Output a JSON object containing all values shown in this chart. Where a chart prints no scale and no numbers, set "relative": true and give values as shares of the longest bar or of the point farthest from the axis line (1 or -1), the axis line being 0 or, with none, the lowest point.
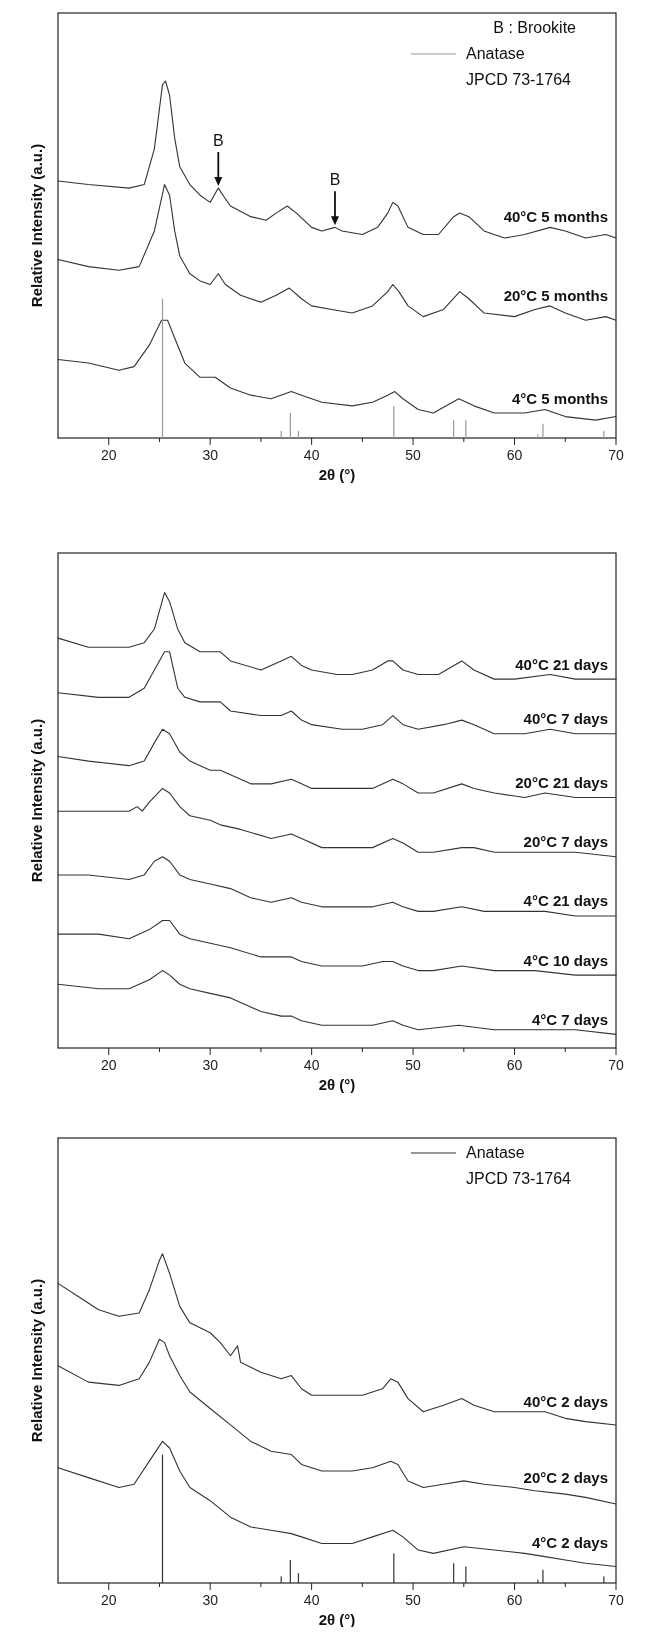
{
  "chart_data": [
    {
      "type": "line",
      "relative": true,
      "xlabel": "2θ (°)",
      "ylabel": "Relative Intensity (a.u.)",
      "xlim": [
        15,
        70
      ],
      "xticks": [
        20,
        {
          "value": 25,
          "label": null
        },
        30,
        {
          "value": 35,
          "label": null
        },
        40,
        {
          "value": 45,
          "label": null
        },
        50,
        {
          "value": 55,
          "label": null
        },
        60,
        {
          "value": 65,
          "label": null
        },
        70
      ],
      "legend": "top right",
      "annotations": [
        "B : Brookite",
        {
          "text": "B",
          "x": 30.8,
          "y": 0.7
        },
        {
          "text": "B",
          "x": 42.3,
          "y": 0.59
        }
      ],
      "series": [
        {
          "name": "40°C 5 months",
          "color": "#333333",
          "x": [
            15,
            18,
            22,
            23.5,
            24.5,
            25.3,
            25.6,
            26,
            26.5,
            27,
            28,
            29,
            30,
            30.8,
            31.5,
            32,
            34,
            35.5,
            36.5,
            37.6,
            38.5,
            40,
            41,
            42.3,
            43,
            45,
            46.5,
            47.5,
            48,
            48.5,
            49.5,
            51,
            52.5,
            54,
            54.6,
            55.5,
            57,
            59,
            61,
            63.5,
            65,
            67,
            69,
            70
          ],
          "values": [
            0.72,
            0.71,
            0.7,
            0.71,
            0.81,
            0.99,
            1.0,
            0.96,
            0.84,
            0.76,
            0.71,
            0.68,
            0.66,
            0.7,
            0.67,
            0.65,
            0.62,
            0.61,
            0.63,
            0.65,
            0.63,
            0.59,
            0.58,
            0.59,
            0.58,
            0.57,
            0.59,
            0.63,
            0.66,
            0.65,
            0.59,
            0.57,
            0.57,
            0.62,
            0.63,
            0.62,
            0.58,
            0.56,
            0.57,
            0.59,
            0.58,
            0.56,
            0.57,
            0.56
          ]
        },
        {
          "name": "20°C 5 months",
          "color": "#333333",
          "x": [
            15,
            18,
            21,
            23,
            24.5,
            25.5,
            26,
            26.5,
            27,
            28,
            29,
            30,
            30.8,
            31.5,
            33,
            35,
            36.5,
            37.8,
            39,
            40,
            42,
            44,
            46,
            47.5,
            48,
            48.6,
            49.5,
            51,
            53,
            54.6,
            55.5,
            57,
            60,
            62,
            63.5,
            65,
            67,
            69,
            70
          ],
          "values": [
            0.5,
            0.48,
            0.47,
            0.48,
            0.58,
            0.71,
            0.68,
            0.58,
            0.51,
            0.46,
            0.44,
            0.43,
            0.46,
            0.43,
            0.4,
            0.38,
            0.4,
            0.42,
            0.39,
            0.37,
            0.36,
            0.35,
            0.37,
            0.41,
            0.43,
            0.41,
            0.37,
            0.34,
            0.36,
            0.41,
            0.39,
            0.35,
            0.34,
            0.36,
            0.37,
            0.35,
            0.33,
            0.34,
            0.33
          ]
        },
        {
          "name": "4°C 5 months",
          "color": "#333333",
          "x": [
            15,
            18,
            21,
            22.5,
            24,
            25.2,
            25.8,
            26.5,
            27.5,
            29,
            30.5,
            32,
            34,
            36,
            38,
            39,
            41,
            44,
            46,
            47.5,
            48.2,
            49,
            50.5,
            52,
            54.5,
            56,
            58,
            61,
            63,
            65,
            68,
            70
          ],
          "values": [
            0.22,
            0.21,
            0.19,
            0.2,
            0.26,
            0.33,
            0.33,
            0.28,
            0.21,
            0.17,
            0.17,
            0.14,
            0.12,
            0.11,
            0.13,
            0.12,
            0.1,
            0.09,
            0.1,
            0.12,
            0.13,
            0.11,
            0.08,
            0.07,
            0.11,
            0.09,
            0.07,
            0.07,
            0.08,
            0.06,
            0.05,
            0.06
          ]
        },
        {
          "name": "Anatase JPCD 73-1764",
          "type": "bar",
          "color": "#999999",
          "x": [
            25.3,
            37.0,
            37.9,
            38.7,
            48.1,
            54.0,
            55.2,
            62.3,
            62.8,
            68.8
          ],
          "values": [
            0.39,
            0.02,
            0.07,
            0.02,
            0.09,
            0.05,
            0.05,
            0.01,
            0.04,
            0.02
          ]
        }
      ]
    },
    {
      "type": "line",
      "relative": true,
      "xlabel": "2θ (°)",
      "ylabel": "Relative Intensity (a.u.)",
      "xlim": [
        15,
        70
      ],
      "xticks": [
        20,
        {
          "value": 25,
          "label": null
        },
        30,
        {
          "value": 35,
          "label": null
        },
        40,
        {
          "value": 45,
          "label": null
        },
        50,
        {
          "value": 55,
          "label": null
        },
        60,
        {
          "value": 65,
          "label": null
        },
        70
      ],
      "series": [
        {
          "name": "40°C 21 days",
          "color": "#333333",
          "x": [
            15,
            18,
            22,
            23.5,
            24.5,
            25.5,
            26,
            26.8,
            27.5,
            29,
            30.5,
            31,
            32,
            35,
            37,
            38,
            39,
            40,
            42.5,
            44,
            46,
            47.5,
            48,
            49,
            50.5,
            52.5,
            54.8,
            56,
            58,
            60,
            63.5,
            66,
            68,
            70
          ],
          "values": [
            0.9,
            0.88,
            0.88,
            0.89,
            0.92,
            1.0,
            0.98,
            0.92,
            0.89,
            0.87,
            0.87,
            0.87,
            0.85,
            0.83,
            0.85,
            0.86,
            0.84,
            0.83,
            0.82,
            0.82,
            0.83,
            0.85,
            0.85,
            0.83,
            0.82,
            0.82,
            0.85,
            0.83,
            0.81,
            0.81,
            0.82,
            0.81,
            0.81,
            0.81
          ]
        },
        {
          "name": "40°C 7 days",
          "color": "#333333",
          "x": [
            15,
            19,
            22,
            23.5,
            24.5,
            25.5,
            26,
            26.8,
            27.5,
            29,
            30.5,
            31,
            32,
            35,
            37,
            38,
            39,
            40,
            43,
            45,
            47,
            48,
            49,
            50.5,
            53,
            54.8,
            56,
            58,
            61,
            63.5,
            66,
            68,
            70
          ],
          "values": [
            0.78,
            0.77,
            0.77,
            0.79,
            0.83,
            0.87,
            0.87,
            0.79,
            0.77,
            0.76,
            0.76,
            0.76,
            0.74,
            0.73,
            0.73,
            0.74,
            0.72,
            0.71,
            0.7,
            0.7,
            0.71,
            0.73,
            0.71,
            0.7,
            0.71,
            0.72,
            0.71,
            0.69,
            0.69,
            0.7,
            0.69,
            0.69,
            0.69
          ]
        },
        {
          "name": "20°C 21 days",
          "color": "#333333",
          "x": [
            15,
            18,
            22,
            23.5,
            24.5,
            25.3,
            26,
            27,
            28,
            30,
            31,
            32,
            34,
            36,
            38,
            39,
            40,
            43,
            46,
            48,
            49,
            50.5,
            52,
            54.8,
            56,
            58,
            61,
            63,
            66,
            70
          ],
          "values": [
            0.64,
            0.63,
            0.62,
            0.63,
            0.67,
            0.7,
            0.69,
            0.65,
            0.63,
            0.61,
            0.61,
            0.6,
            0.58,
            0.58,
            0.59,
            0.58,
            0.57,
            0.57,
            0.57,
            0.59,
            0.58,
            0.56,
            0.56,
            0.58,
            0.57,
            0.56,
            0.55,
            0.56,
            0.55,
            0.55
          ]
        },
        {
          "name": "20°C 7 days",
          "color": "#333333",
          "x": [
            15,
            18,
            22,
            22.8,
            23.3,
            24,
            25.3,
            26,
            27,
            28,
            30,
            31,
            33,
            36,
            38,
            39,
            41,
            44,
            46,
            48,
            49,
            50.5,
            52,
            54.8,
            56,
            58,
            61,
            63,
            66,
            70
          ],
          "values": [
            0.52,
            0.52,
            0.52,
            0.53,
            0.52,
            0.54,
            0.57,
            0.56,
            0.53,
            0.51,
            0.5,
            0.49,
            0.48,
            0.46,
            0.47,
            0.46,
            0.44,
            0.44,
            0.44,
            0.46,
            0.45,
            0.43,
            0.43,
            0.44,
            0.44,
            0.43,
            0.43,
            0.43,
            0.43,
            0.42
          ]
        },
        {
          "name": "4°C 21 days",
          "color": "#333333",
          "x": [
            15,
            18,
            22,
            23.5,
            24.5,
            25.3,
            26,
            27,
            28,
            30,
            32,
            34,
            36,
            38,
            39,
            41,
            44,
            46,
            48,
            49,
            50.5,
            52,
            54.8,
            57,
            60,
            63,
            66,
            70
          ],
          "values": [
            0.38,
            0.38,
            0.37,
            0.38,
            0.41,
            0.42,
            0.41,
            0.38,
            0.37,
            0.36,
            0.35,
            0.33,
            0.32,
            0.33,
            0.32,
            0.31,
            0.31,
            0.31,
            0.32,
            0.31,
            0.3,
            0.3,
            0.31,
            0.3,
            0.3,
            0.3,
            0.29,
            0.29
          ]
        },
        {
          "name": "4°C 10 days",
          "color": "#333333",
          "x": [
            15,
            19,
            22,
            24,
            25.3,
            26,
            27,
            28,
            30,
            32,
            35,
            38,
            39,
            41,
            45,
            47,
            48,
            49,
            50.5,
            52,
            54.8,
            58,
            62,
            66,
            70
          ],
          "values": [
            0.25,
            0.25,
            0.24,
            0.26,
            0.28,
            0.28,
            0.25,
            0.24,
            0.23,
            0.22,
            0.2,
            0.2,
            0.19,
            0.18,
            0.18,
            0.19,
            0.19,
            0.18,
            0.17,
            0.17,
            0.18,
            0.17,
            0.17,
            0.16,
            0.16
          ]
        },
        {
          "name": "4°C 7 days",
          "color": "#333333",
          "x": [
            15,
            19,
            22,
            24,
            25.3,
            26,
            27,
            28,
            30,
            32,
            35,
            37,
            38,
            39,
            41,
            46,
            48,
            49,
            50.5,
            54.5,
            58,
            62,
            66,
            70
          ],
          "values": [
            0.14,
            0.13,
            0.13,
            0.15,
            0.17,
            0.16,
            0.14,
            0.13,
            0.12,
            0.11,
            0.08,
            0.07,
            0.07,
            0.06,
            0.05,
            0.05,
            0.06,
            0.05,
            0.04,
            0.05,
            0.04,
            0.04,
            0.04,
            0.03
          ]
        }
      ]
    },
    {
      "type": "line",
      "relative": true,
      "xlabel": "2θ (°)",
      "ylabel": "Relative Intensity (a.u.)",
      "xlim": [
        15,
        70
      ],
      "xticks": [
        20,
        {
          "value": 25,
          "label": null
        },
        30,
        {
          "value": 35,
          "label": null
        },
        40,
        {
          "value": 45,
          "label": null
        },
        50,
        {
          "value": 55,
          "label": null
        },
        60,
        {
          "value": 65,
          "label": null
        },
        70
      ],
      "legend": "top right",
      "series": [
        {
          "name": "40°C  2 days",
          "color": "#333333",
          "x": [
            15,
            17,
            19,
            21,
            23,
            24,
            25,
            25.3,
            26,
            27,
            28,
            30,
            31,
            32,
            32.7,
            33,
            35,
            37,
            38,
            39,
            40,
            43,
            45,
            47,
            47.8,
            48.5,
            49.5,
            51,
            53,
            54.8,
            56,
            58,
            60,
            63,
            65,
            67,
            70
          ],
          "values": [
            0.91,
            0.87,
            0.83,
            0.81,
            0.82,
            0.89,
            0.98,
            1.0,
            0.94,
            0.84,
            0.79,
            0.76,
            0.73,
            0.69,
            0.72,
            0.67,
            0.64,
            0.62,
            0.63,
            0.59,
            0.57,
            0.57,
            0.57,
            0.59,
            0.62,
            0.61,
            0.56,
            0.52,
            0.54,
            0.56,
            0.54,
            0.52,
            0.52,
            0.52,
            0.5,
            0.49,
            0.48
          ]
        },
        {
          "name": "20°C  2 days",
          "color": "#333333",
          "x": [
            15,
            18,
            21,
            23,
            24,
            25,
            25.5,
            26,
            27,
            28,
            30,
            32,
            34,
            36,
            38,
            39,
            41,
            44,
            46,
            47.8,
            48.5,
            49.5,
            51,
            53,
            55,
            57,
            60,
            62,
            65,
            67,
            70
          ],
          "values": [
            0.66,
            0.61,
            0.6,
            0.62,
            0.67,
            0.74,
            0.73,
            0.69,
            0.63,
            0.58,
            0.53,
            0.48,
            0.43,
            0.4,
            0.39,
            0.36,
            0.34,
            0.34,
            0.35,
            0.37,
            0.36,
            0.31,
            0.29,
            0.3,
            0.31,
            0.3,
            0.29,
            0.28,
            0.27,
            0.26,
            0.24
          ]
        },
        {
          "name": "4°C  2 days",
          "color": "#333333",
          "x": [
            15,
            18,
            21,
            22.5,
            24,
            25.3,
            26,
            27,
            28,
            30,
            32,
            34,
            36,
            38,
            39,
            41,
            44,
            46,
            48,
            49,
            50.5,
            52,
            55,
            58,
            61,
            63,
            65,
            67,
            70
          ],
          "values": [
            0.35,
            0.32,
            0.29,
            0.3,
            0.37,
            0.43,
            0.41,
            0.34,
            0.29,
            0.25,
            0.2,
            0.17,
            0.16,
            0.15,
            0.14,
            0.12,
            0.12,
            0.14,
            0.16,
            0.14,
            0.1,
            0.09,
            0.11,
            0.1,
            0.09,
            0.08,
            0.07,
            0.06,
            0.05
          ]
        },
        {
          "name": "Anatase JPCD 73-1764",
          "type": "bar",
          "color": "#333333",
          "x": [
            25.3,
            37.0,
            37.9,
            38.7,
            48.1,
            54.0,
            55.2,
            62.3,
            62.8,
            68.8
          ],
          "values": [
            0.39,
            0.02,
            0.07,
            0.03,
            0.09,
            0.06,
            0.05,
            0.01,
            0.04,
            0.02
          ]
        }
      ]
    }
  ]
}
